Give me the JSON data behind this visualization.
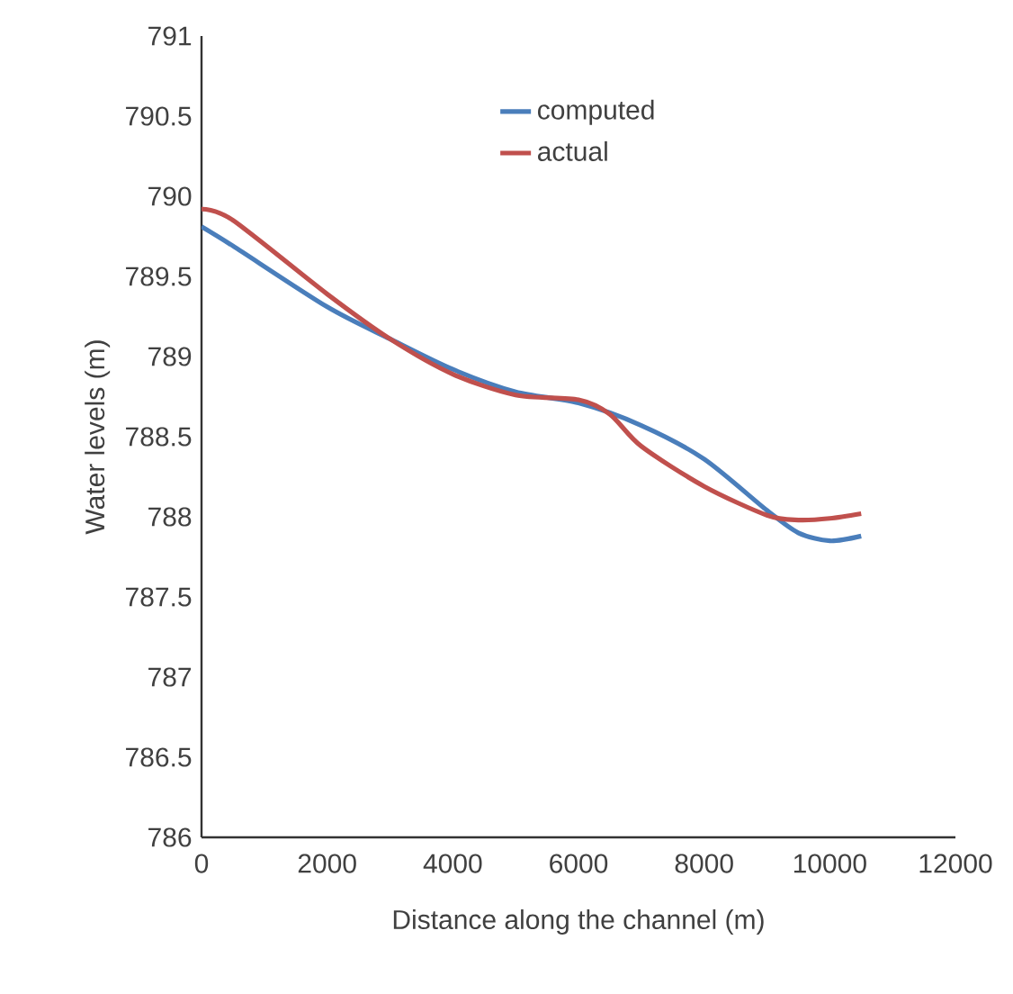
{
  "chart_data": {
    "type": "line",
    "xlabel": "Distance along the channel (m)",
    "ylabel": "Water levels (m)",
    "xlim": [
      0,
      12000
    ],
    "xticks": [
      0,
      2000,
      4000,
      6000,
      8000,
      10000,
      12000
    ],
    "ylim": [
      786,
      791
    ],
    "yticks": [
      786,
      786.5,
      787,
      787.5,
      788,
      788.5,
      789,
      789.5,
      790,
      790.5,
      791
    ],
    "legend": "top",
    "grid": false,
    "marker": "none",
    "line_style": "solid",
    "series": [
      {
        "name": "computed",
        "color": "#4a7ebb",
        "x": [
          0,
          500,
          2000,
          3000,
          4000,
          5000,
          6000,
          7000,
          8000,
          9000,
          9500,
          10000,
          10500
        ],
        "values": [
          789.81,
          789.69,
          789.31,
          789.11,
          788.92,
          788.78,
          788.71,
          788.57,
          788.36,
          788.04,
          787.9,
          787.85,
          787.88
        ]
      },
      {
        "name": "actual",
        "color": "#c0504d",
        "x": [
          0,
          500,
          2000,
          3000,
          4000,
          5000,
          6000,
          6500,
          7000,
          8000,
          9000,
          9500,
          10000,
          10500
        ],
        "values": [
          789.92,
          789.85,
          789.39,
          789.11,
          788.89,
          788.76,
          788.73,
          788.64,
          788.44,
          788.19,
          788.01,
          787.98,
          787.99,
          788.02
        ]
      }
    ]
  }
}
